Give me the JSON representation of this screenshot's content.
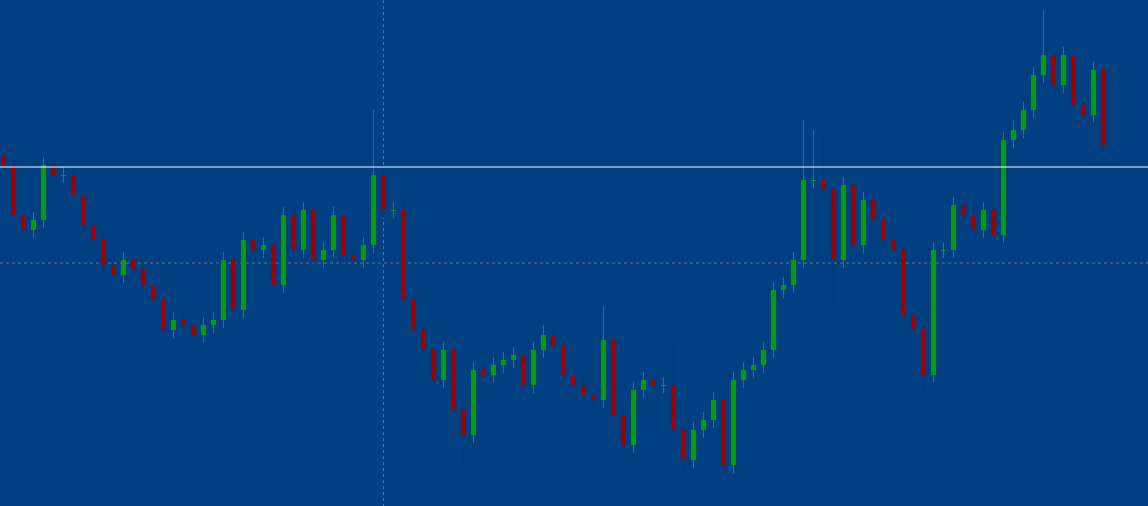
{
  "chart_data": {
    "type": "candlestick",
    "background": "#003f80",
    "up_color": "#00a000",
    "down_color": "#a00000",
    "ylim": [
      0,
      506
    ],
    "price_line": {
      "value": 339,
      "color": "#ffffff"
    },
    "crosshair": {
      "index": 38,
      "value": 243,
      "color": "#8a8a8a"
    },
    "open": [
      351,
      341,
      291,
      276,
      286,
      341,
      331,
      331,
      311,
      281,
      266,
      241,
      231,
      246,
      236,
      221,
      206,
      176,
      186,
      181,
      171,
      181,
      186,
      246,
      196,
      266,
      256,
      261,
      221,
      291,
      256,
      296,
      246,
      256,
      291,
      251,
      246,
      261,
      331,
      296,
      296,
      206,
      176,
      156,
      126,
      156,
      96,
      71,
      136,
      131,
      141,
      146,
      151,
      121,
      156,
      171,
      161,
      131,
      121,
      111,
      106,
      166,
      91,
      61,
      116,
      126,
      121,
      121,
      76,
      46,
      76,
      86,
      106,
      41,
      126,
      136,
      141,
      156,
      216,
      221,
      246,
      326,
      326,
      316,
      246,
      321,
      261,
      306,
      286,
      266,
      256,
      191,
      176,
      131,
      256,
      256,
      301,
      291,
      276,
      296,
      271,
      366,
      376,
      396,
      431,
      451,
      421,
      451,
      401,
      391,
      436
    ],
    "high": [
      359,
      349,
      299,
      294,
      349,
      349,
      339,
      339,
      319,
      289,
      274,
      249,
      254,
      254,
      244,
      229,
      214,
      194,
      194,
      189,
      189,
      194,
      254,
      254,
      274,
      274,
      269,
      269,
      299,
      299,
      304,
      304,
      264,
      299,
      299,
      259,
      269,
      396,
      339,
      304,
      304,
      214,
      184,
      164,
      164,
      164,
      104,
      144,
      144,
      149,
      154,
      159,
      159,
      164,
      181,
      179,
      169,
      139,
      129,
      119,
      200,
      174,
      99,
      124,
      134,
      134,
      129,
      166,
      84,
      84,
      94,
      114,
      114,
      134,
      144,
      149,
      164,
      224,
      229,
      254,
      386,
      376,
      374,
      324,
      329,
      329,
      314,
      314,
      294,
      274,
      264,
      199,
      184,
      264,
      264,
      309,
      309,
      299,
      304,
      304,
      374,
      386,
      404,
      439,
      496,
      459,
      459,
      459,
      409,
      444,
      444
    ],
    "low": [
      333,
      283,
      268,
      268,
      278,
      323,
      323,
      303,
      273,
      258,
      233,
      223,
      223,
      228,
      213,
      198,
      168,
      168,
      173,
      163,
      163,
      173,
      178,
      188,
      188,
      248,
      248,
      213,
      213,
      248,
      248,
      238,
      238,
      248,
      243,
      238,
      238,
      253,
      288,
      288,
      198,
      168,
      148,
      118,
      118,
      88,
      40,
      63,
      123,
      123,
      133,
      138,
      113,
      113,
      148,
      153,
      123,
      113,
      103,
      98,
      98,
      83,
      53,
      53,
      108,
      113,
      113,
      68,
      32,
      38,
      68,
      78,
      33,
      33,
      118,
      128,
      133,
      148,
      208,
      213,
      238,
      318,
      308,
      198,
      238,
      253,
      253,
      278,
      258,
      248,
      183,
      168,
      113,
      123,
      248,
      248,
      283,
      268,
      268,
      263,
      263,
      358,
      368,
      388,
      423,
      413,
      413,
      393,
      383,
      383,
      353
    ],
    "close": [
      341,
      291,
      276,
      286,
      341,
      331,
      331,
      311,
      281,
      266,
      241,
      231,
      246,
      236,
      221,
      206,
      176,
      186,
      181,
      171,
      181,
      186,
      246,
      196,
      266,
      256,
      261,
      221,
      291,
      256,
      296,
      246,
      256,
      291,
      251,
      246,
      261,
      331,
      296,
      296,
      206,
      176,
      156,
      126,
      156,
      96,
      71,
      136,
      131,
      141,
      146,
      151,
      121,
      156,
      171,
      161,
      131,
      121,
      111,
      106,
      166,
      91,
      61,
      116,
      126,
      121,
      121,
      76,
      46,
      76,
      86,
      106,
      41,
      126,
      136,
      141,
      156,
      216,
      221,
      246,
      326,
      326,
      316,
      246,
      321,
      261,
      306,
      286,
      266,
      256,
      191,
      176,
      131,
      256,
      256,
      301,
      291,
      276,
      296,
      271,
      366,
      376,
      396,
      431,
      451,
      421,
      451,
      401,
      391,
      436,
      361
    ]
  }
}
